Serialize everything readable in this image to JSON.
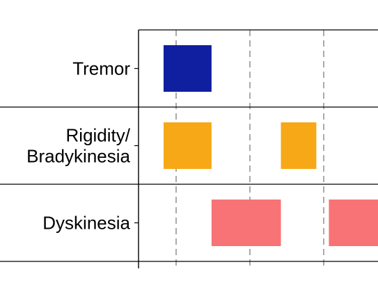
{
  "chart_data": {
    "type": "timeline",
    "categories": [
      "Tremor",
      "Rigidity/\nBradykinesia",
      "Dyskinesia"
    ],
    "x_reference_lines": [
      1,
      2,
      3
    ],
    "grid": "dashed vertical reference lines",
    "series": [
      {
        "category": "Tremor",
        "color": "#0f1fa0",
        "segments": [
          [
            0.83,
            1.48
          ]
        ]
      },
      {
        "category": "Rigidity/\nBradykinesia",
        "color": "#f6a817",
        "segments": [
          [
            0.83,
            1.48
          ],
          [
            2.42,
            2.9
          ]
        ]
      },
      {
        "category": "Dyskinesia",
        "color": "#f77375",
        "segments": [
          [
            1.48,
            2.42
          ],
          [
            3.07,
            3.8
          ]
        ]
      }
    ]
  }
}
